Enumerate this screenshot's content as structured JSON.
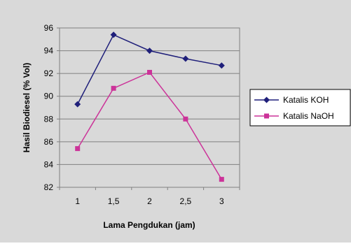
{
  "chart_data": {
    "type": "line",
    "title": "",
    "xlabel": "Lama Pengdukan (jam)",
    "ylabel": "Hasil Biodiesel (% Vol)",
    "categories": [
      "1",
      "1,5",
      "2",
      "2,5",
      "3"
    ],
    "ylim": [
      82,
      96
    ],
    "yticks": [
      "82",
      "84",
      "86",
      "88",
      "90",
      "92",
      "94",
      "96"
    ],
    "grid": true,
    "legend_position": "right",
    "series": [
      {
        "name": "Katalis KOH",
        "color": "#1f1f7a",
        "marker": "diamond",
        "values": [
          89.3,
          95.4,
          94.0,
          93.3,
          92.7
        ]
      },
      {
        "name": "Katalis NaOH",
        "color": "#cc3399",
        "marker": "square",
        "values": [
          85.4,
          90.7,
          92.1,
          88.0,
          82.7
        ]
      }
    ]
  }
}
